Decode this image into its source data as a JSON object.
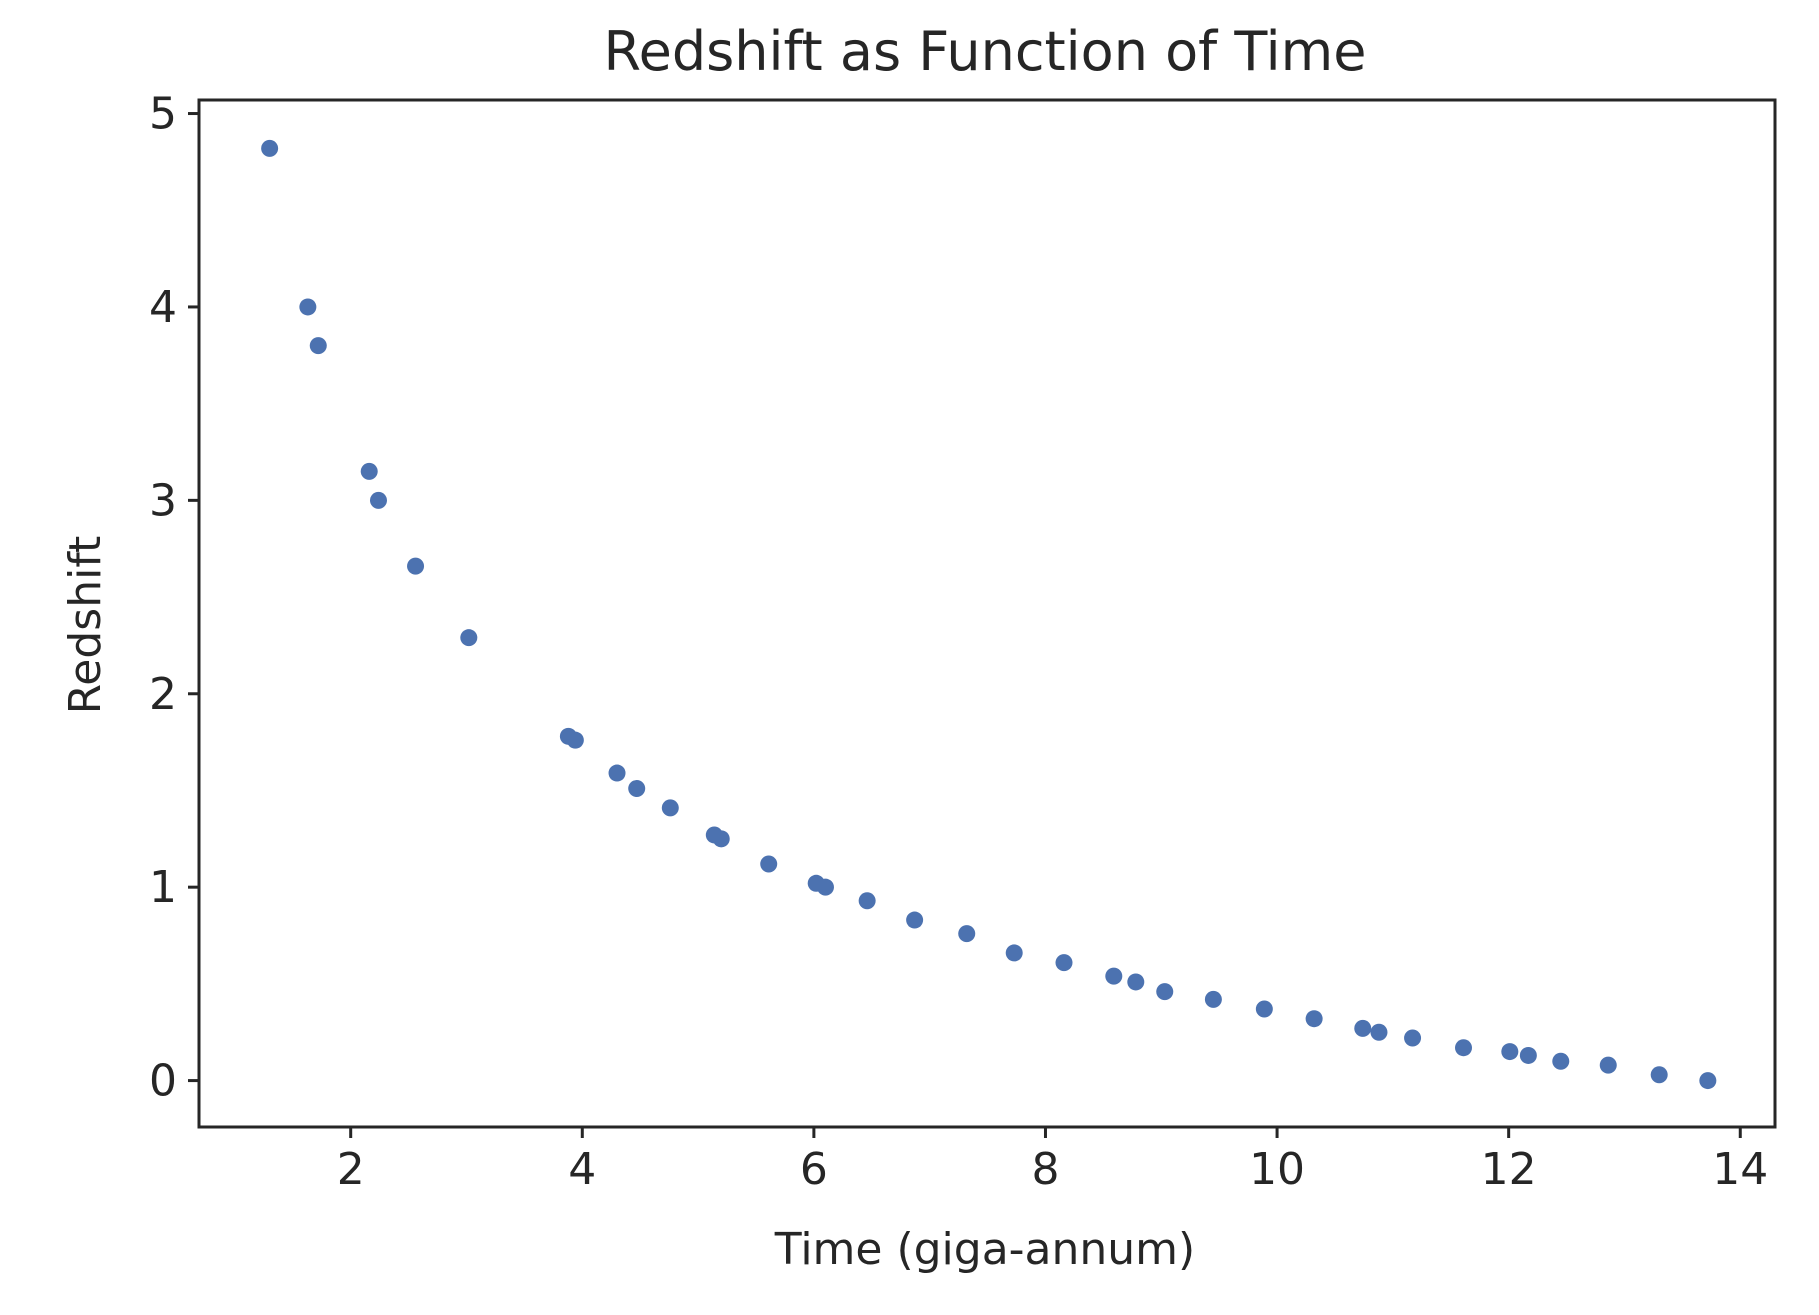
{
  "chart_data": {
    "type": "scatter",
    "title": "Redshift as Function of Time",
    "xlabel": "Time (giga-annum)",
    "ylabel": "Redshift",
    "xlim": [
      0.69,
      14.3
    ],
    "ylim": [
      -0.24,
      5.07
    ],
    "xticks": [
      2,
      4,
      6,
      8,
      10,
      12,
      14
    ],
    "yticks": [
      0,
      1,
      2,
      3,
      4,
      5
    ],
    "grid": false,
    "marker_color": "#4c72b0",
    "series": [
      {
        "points": [
          [
            1.3,
            4.82
          ],
          [
            1.63,
            4.0
          ],
          [
            1.72,
            3.8
          ],
          [
            2.16,
            3.15
          ],
          [
            2.24,
            3.0
          ],
          [
            2.56,
            2.66
          ],
          [
            3.02,
            2.29
          ],
          [
            3.88,
            1.78
          ],
          [
            3.94,
            1.76
          ],
          [
            4.3,
            1.59
          ],
          [
            4.47,
            1.51
          ],
          [
            4.76,
            1.41
          ],
          [
            5.14,
            1.27
          ],
          [
            5.2,
            1.25
          ],
          [
            5.61,
            1.12
          ],
          [
            6.02,
            1.02
          ],
          [
            6.1,
            1.0
          ],
          [
            6.46,
            0.93
          ],
          [
            6.87,
            0.83
          ],
          [
            7.32,
            0.76
          ],
          [
            7.73,
            0.66
          ],
          [
            8.16,
            0.61
          ],
          [
            8.59,
            0.54
          ],
          [
            8.78,
            0.51
          ],
          [
            9.03,
            0.46
          ],
          [
            9.45,
            0.42
          ],
          [
            9.89,
            0.37
          ],
          [
            10.32,
            0.32
          ],
          [
            10.74,
            0.27
          ],
          [
            10.88,
            0.25
          ],
          [
            11.17,
            0.22
          ],
          [
            11.61,
            0.17
          ],
          [
            12.01,
            0.15
          ],
          [
            12.17,
            0.13
          ],
          [
            12.45,
            0.1
          ],
          [
            12.86,
            0.08
          ],
          [
            13.3,
            0.03
          ],
          [
            13.72,
            0.0
          ]
        ]
      }
    ]
  }
}
